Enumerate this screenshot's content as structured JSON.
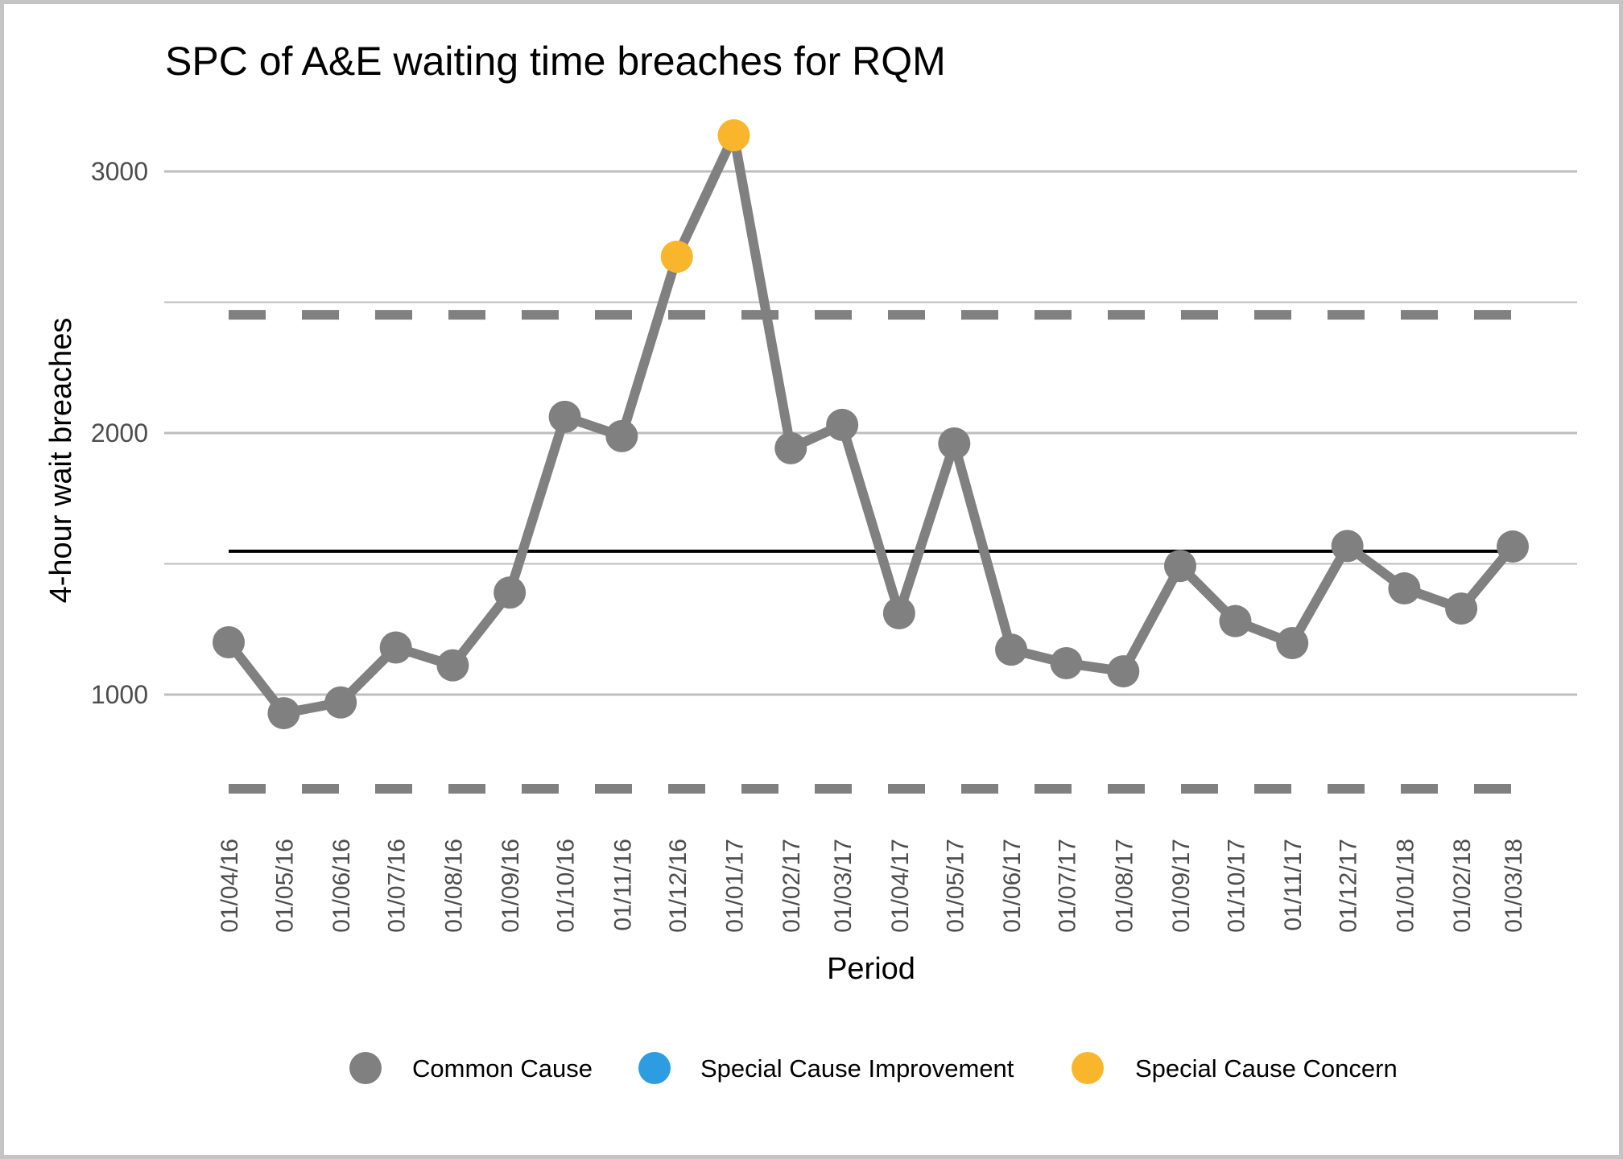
{
  "chart_data": {
    "type": "line",
    "title": "SPC of A&E waiting time breaches for RQM",
    "xlabel": "Period",
    "ylabel": "4-hour wait breaches",
    "ylim": [
      550,
      3250
    ],
    "yticks": [
      1000,
      2000,
      3000
    ],
    "grid": true,
    "legend_position": "bottom",
    "categories": [
      "01/04/16",
      "01/05/16",
      "01/06/16",
      "01/07/16",
      "01/08/16",
      "01/09/16",
      "01/10/16",
      "01/11/16",
      "01/12/16",
      "01/01/17",
      "01/02/17",
      "01/03/17",
      "01/04/17",
      "01/05/17",
      "01/06/17",
      "01/07/17",
      "01/08/17",
      "01/09/17",
      "01/10/17",
      "01/11/17",
      "01/12/17",
      "01/01/18",
      "01/02/18",
      "01/03/18"
    ],
    "series": [
      {
        "name": "4-hour wait breaches",
        "values": [
          1200,
          929,
          970,
          1180,
          1112,
          1390,
          2062,
          1988,
          2674,
          3138,
          1942,
          2031,
          1311,
          1960,
          1172,
          1120,
          1089,
          1492,
          1281,
          1197,
          1568,
          1406,
          1329,
          1566
        ],
        "status": [
          "common",
          "common",
          "common",
          "common",
          "common",
          "common",
          "common",
          "common",
          "concern",
          "concern",
          "common",
          "common",
          "common",
          "common",
          "common",
          "common",
          "common",
          "common",
          "common",
          "common",
          "common",
          "common",
          "common",
          "common"
        ]
      }
    ],
    "control_lines": {
      "mean": 1548,
      "upper_limit": 2452,
      "lower_limit": 640
    },
    "legend": [
      {
        "key": "common",
        "label": "Common Cause",
        "color": "#7f807f"
      },
      {
        "key": "improvement",
        "label": "Special Cause Improvement",
        "color": "#2b9de0"
      },
      {
        "key": "concern",
        "label": "Special Cause Concern",
        "color": "#f9b52b"
      }
    ],
    "colors": {
      "line": "#7f807f",
      "grid": "#bebebe",
      "mean": "#000000",
      "limits": "#7f807f"
    }
  }
}
